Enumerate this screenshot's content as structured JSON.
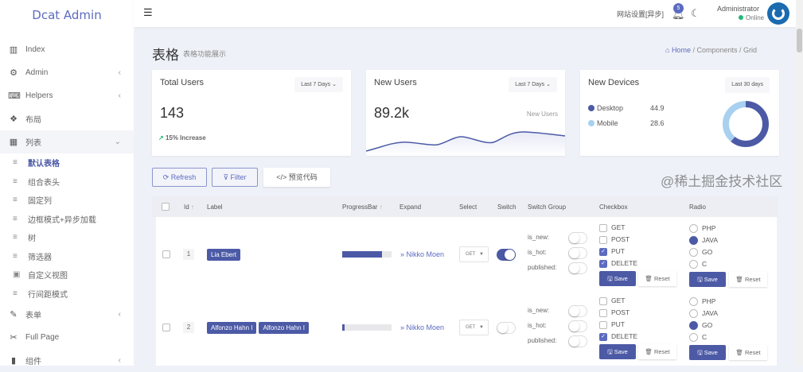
{
  "app": {
    "logo": "Dcat Admin"
  },
  "sidebar": {
    "items": [
      {
        "label": "Index",
        "icon": "bar-chart-icon"
      },
      {
        "label": "Admin",
        "icon": "gear-icon",
        "chevron": "<"
      },
      {
        "label": "Helpers",
        "icon": "keyboard-icon",
        "chevron": "<"
      },
      {
        "label": "布局",
        "icon": "cubes-icon"
      },
      {
        "label": "列表",
        "icon": "grid-icon",
        "chevron": "v",
        "open": true
      },
      {
        "label": "表单",
        "icon": "edit-icon",
        "chevron": "<"
      },
      {
        "label": "Full Page",
        "icon": "scissors-icon"
      },
      {
        "label": "组件",
        "icon": "tablet-icon",
        "chevron": "<"
      }
    ],
    "sub": [
      {
        "label": "默认表格",
        "active": true
      },
      {
        "label": "组合表头"
      },
      {
        "label": "固定列"
      },
      {
        "label": "边框模式+异步加载"
      },
      {
        "label": "树"
      },
      {
        "label": "筛选器"
      },
      {
        "label": "自定义视图",
        "icon": "image-icon"
      },
      {
        "label": "行间距模式"
      }
    ]
  },
  "header": {
    "settings": "网站设置[异步]",
    "notifications": "5",
    "user": "Administrator",
    "status": "Online"
  },
  "page": {
    "title": "表格",
    "subtitle": "表格功能展示",
    "breadcrumb": [
      "Home",
      "Components",
      "Grid"
    ]
  },
  "cards": {
    "total": {
      "title": "Total Users",
      "range": "Last 7 Days",
      "value": "143",
      "change": "15% Increase"
    },
    "new": {
      "title": "New Users",
      "range": "Last 7 Days",
      "value": "89.2k",
      "series": "New Users"
    },
    "devices": {
      "title": "New Devices",
      "range": "Last 30 days",
      "items": [
        {
          "label": "Desktop",
          "value": "44.9",
          "color": "#4c5aa6"
        },
        {
          "label": "Mobile",
          "value": "28.6",
          "color": "#a8d0f0"
        }
      ]
    }
  },
  "toolbar": {
    "refresh": "Refresh",
    "filter": "Filter",
    "code": "</> 预览代码"
  },
  "table": {
    "columns": [
      "Id",
      "Label",
      "ProgressBar",
      "Expand",
      "Select",
      "Switch",
      "Switch Group",
      "Checkbox",
      "Radio"
    ],
    "rows": [
      {
        "id": "1",
        "labels": [
          "Lia Ebert"
        ],
        "progress": 80,
        "expand": "Nikko Moen",
        "select": "GET",
        "switch": true,
        "group": [
          {
            "k": "is_new:",
            "on": false
          },
          {
            "k": "is_hot:",
            "on": false
          },
          {
            "k": "published:",
            "on": false
          }
        ],
        "checkbox": [
          {
            "l": "GET",
            "c": false
          },
          {
            "l": "POST",
            "c": false
          },
          {
            "l": "PUT",
            "c": true
          },
          {
            "l": "DELETE",
            "c": true
          }
        ],
        "radio": [
          {
            "l": "PHP",
            "c": false
          },
          {
            "l": "JAVA",
            "c": true
          },
          {
            "l": "GO",
            "c": false
          },
          {
            "l": "C",
            "c": false
          }
        ]
      },
      {
        "id": "2",
        "labels": [
          "Alfonzo Hahn I",
          "Alfonzo Hahn I"
        ],
        "progress": 5,
        "expand": "Nikko Moen",
        "select": "GET",
        "switch": false,
        "group": [
          {
            "k": "is_new:",
            "on": false
          },
          {
            "k": "is_hot:",
            "on": false
          },
          {
            "k": "published:",
            "on": false
          }
        ],
        "checkbox": [
          {
            "l": "GET",
            "c": false
          },
          {
            "l": "POST",
            "c": false
          },
          {
            "l": "PUT",
            "c": false
          },
          {
            "l": "DELETE",
            "c": true
          }
        ],
        "radio": [
          {
            "l": "PHP",
            "c": false
          },
          {
            "l": "JAVA",
            "c": false
          },
          {
            "l": "GO",
            "c": true
          },
          {
            "l": "C",
            "c": false
          }
        ]
      }
    ],
    "save": "Save",
    "reset": "Reset"
  },
  "watermark": "@稀土掘金技术社区"
}
